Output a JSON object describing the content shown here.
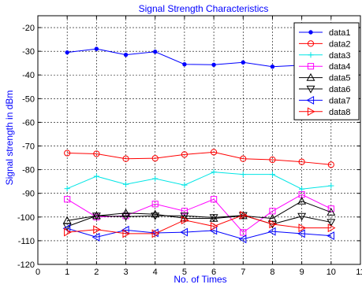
{
  "chart_data": {
    "type": "line",
    "title": "Signal Strength Characteristics",
    "xlabel": "No. of Times",
    "ylabel": "Signal strength in dBm",
    "xlim": [
      0,
      11
    ],
    "ylim": [
      -120,
      -15
    ],
    "xticks": [
      0,
      1,
      2,
      3,
      4,
      5,
      6,
      7,
      8,
      9,
      10,
      11
    ],
    "yticks": [
      -120,
      -110,
      -100,
      -90,
      -80,
      -70,
      -60,
      -50,
      -40,
      -30,
      -20
    ],
    "grid": true,
    "legend_position": "top-right",
    "x": [
      1,
      2,
      3,
      4,
      5,
      6,
      7,
      8,
      9,
      10
    ],
    "series": [
      {
        "name": "data1",
        "color": "#0000ff",
        "marker": "dot",
        "values": [
          -30.5,
          -29,
          -31.5,
          -30.2,
          -35.5,
          -35.7,
          -34.7,
          -36.5,
          -35.9,
          -35.6
        ]
      },
      {
        "name": "data2",
        "color": "#ff0000",
        "marker": "circle",
        "values": [
          -73,
          -73.3,
          -75.4,
          -75.2,
          -73.6,
          -72.6,
          -75.4,
          -75.8,
          -76.7,
          -77.9
        ]
      },
      {
        "name": "data3",
        "color": "#00e5e5",
        "marker": "plus",
        "values": [
          -88,
          -82.8,
          -86.2,
          -83.8,
          -86.5,
          -81,
          -82,
          -82,
          -88.2,
          -86.8
        ]
      },
      {
        "name": "data4",
        "color": "#ff00ff",
        "marker": "square",
        "values": [
          -92.5,
          -100,
          -99.5,
          -94.5,
          -97.5,
          -92.5,
          -106.5,
          -97.5,
          -90.5,
          -96.5
        ]
      },
      {
        "name": "data5",
        "color": "#000000",
        "marker": "triangle-up",
        "values": [
          -101.5,
          -99.5,
          -98.3,
          -98.8,
          -100.5,
          -100.6,
          -99.5,
          -100.6,
          -93.3,
          -98
        ]
      },
      {
        "name": "data6",
        "color": "#000000",
        "marker": "triangle-down",
        "values": [
          -104,
          -99.5,
          -99.8,
          -99.5,
          -99.5,
          -100.2,
          -99.3,
          -103,
          -99.7,
          -102.2
        ]
      },
      {
        "name": "data7",
        "color": "#0000ff",
        "marker": "triangle-left",
        "values": [
          -104.8,
          -108.5,
          -105.5,
          -106.7,
          -106.4,
          -105.7,
          -109.3,
          -106.1,
          -107,
          -107.9
        ]
      },
      {
        "name": "data8",
        "color": "#ff0000",
        "marker": "triangle-right",
        "values": [
          -106.4,
          -105.3,
          -107,
          -107,
          -101.3,
          -103.9,
          -99.2,
          -103,
          -104.6,
          -104.6
        ]
      }
    ]
  }
}
